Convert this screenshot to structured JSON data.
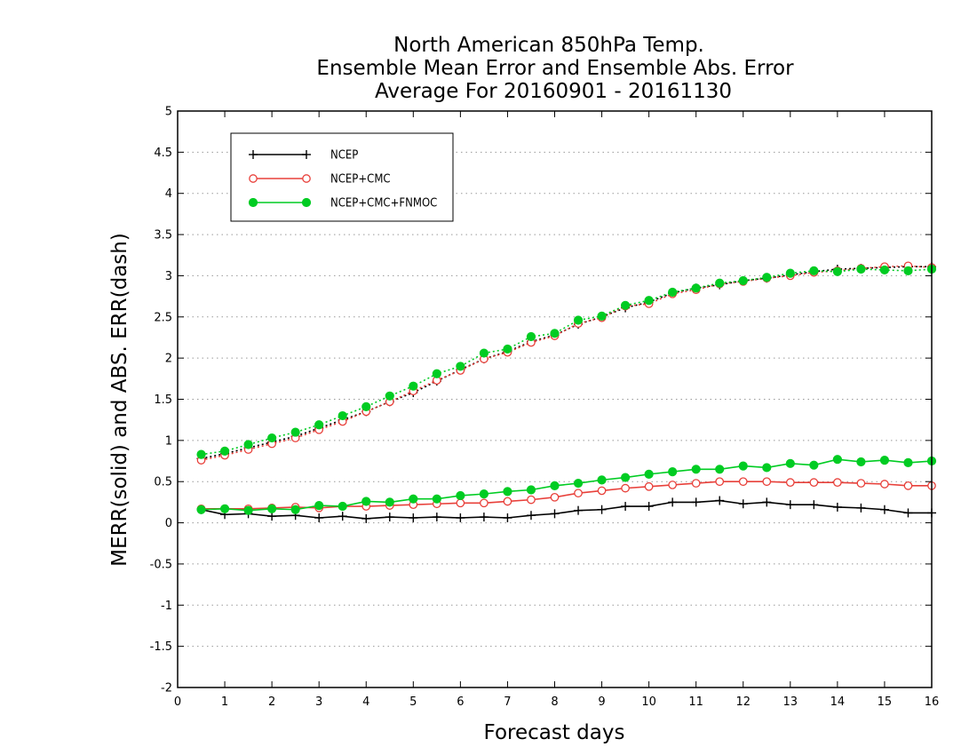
{
  "chart_data": {
    "type": "line",
    "title_lines": [
      "North American 850hPa Temp.",
      "Ensemble Mean Error and Ensemble Abs. Error",
      "Average For 20160901 - 20161130"
    ],
    "xlabel": "Forecast days",
    "ylabel": "MERR(solid) and ABS. ERR(dash)",
    "xlim": [
      0,
      16
    ],
    "ylim": [
      -2,
      5
    ],
    "x_ticks": [
      "0",
      "1",
      "2",
      "3",
      "4",
      "5",
      "6",
      "7",
      "8",
      "9",
      "10",
      "11",
      "12",
      "13",
      "14",
      "15",
      "16"
    ],
    "y_ticks": [
      "-2",
      "-1.5",
      "-1",
      "-0.5",
      "0",
      "0.5",
      "1",
      "1.5",
      "2",
      "2.5",
      "3",
      "3.5",
      "4",
      "4.5",
      "5"
    ],
    "grid": "horizontal dotted",
    "legend_position": "top-left",
    "x": [
      0.5,
      1,
      1.5,
      2,
      2.5,
      3,
      3.5,
      4,
      4.5,
      5,
      5.5,
      6,
      6.5,
      7,
      7.5,
      8,
      8.5,
      9,
      9.5,
      10,
      10.5,
      11,
      11.5,
      12,
      12.5,
      13,
      13.5,
      14,
      14.5,
      15,
      15.5,
      16
    ],
    "series": [
      {
        "name": "NCEP",
        "color": "#000000",
        "marker": "plus",
        "merr": [
          0.16,
          0.1,
          0.11,
          0.08,
          0.09,
          0.06,
          0.08,
          0.05,
          0.07,
          0.06,
          0.07,
          0.06,
          0.07,
          0.06,
          0.09,
          0.11,
          0.15,
          0.16,
          0.2,
          0.2,
          0.25,
          0.25,
          0.27,
          0.23,
          0.25,
          0.22,
          0.22,
          0.19,
          0.18,
          0.16,
          0.12,
          0.12
        ],
        "abs_err": [
          0.78,
          0.84,
          0.91,
          0.98,
          1.05,
          1.15,
          1.25,
          1.35,
          1.47,
          1.58,
          1.72,
          1.86,
          1.99,
          2.08,
          2.2,
          2.28,
          2.41,
          2.5,
          2.61,
          2.68,
          2.79,
          2.85,
          2.89,
          2.94,
          2.97,
          3.01,
          3.05,
          3.08,
          3.09,
          3.1,
          3.11,
          3.11
        ]
      },
      {
        "name": "NCEP+CMC",
        "color": "#e8403a",
        "marker": "open-circle",
        "merr": [
          0.17,
          0.17,
          0.17,
          0.18,
          0.19,
          0.18,
          0.2,
          0.2,
          0.21,
          0.22,
          0.23,
          0.24,
          0.24,
          0.26,
          0.28,
          0.31,
          0.36,
          0.39,
          0.42,
          0.44,
          0.46,
          0.48,
          0.5,
          0.5,
          0.5,
          0.49,
          0.49,
          0.49,
          0.48,
          0.47,
          0.45,
          0.45
        ],
        "abs_err": [
          0.76,
          0.82,
          0.89,
          0.96,
          1.03,
          1.13,
          1.23,
          1.35,
          1.47,
          1.6,
          1.73,
          1.85,
          1.99,
          2.07,
          2.19,
          2.27,
          2.42,
          2.49,
          2.63,
          2.66,
          2.78,
          2.83,
          2.9,
          2.93,
          2.97,
          3.0,
          3.04,
          3.06,
          3.09,
          3.11,
          3.12,
          3.1
        ]
      },
      {
        "name": "NCEP+CMC+FNMOC",
        "color": "#00cc22",
        "marker": "filled-circle",
        "merr": [
          0.16,
          0.17,
          0.15,
          0.17,
          0.16,
          0.21,
          0.2,
          0.26,
          0.25,
          0.29,
          0.29,
          0.33,
          0.35,
          0.38,
          0.4,
          0.45,
          0.48,
          0.52,
          0.55,
          0.59,
          0.62,
          0.65,
          0.65,
          0.69,
          0.67,
          0.72,
          0.7,
          0.77,
          0.74,
          0.76,
          0.73,
          0.75
        ],
        "abs_err": [
          0.83,
          0.87,
          0.95,
          1.03,
          1.1,
          1.19,
          1.3,
          1.41,
          1.54,
          1.66,
          1.81,
          1.9,
          2.06,
          2.11,
          2.26,
          2.3,
          2.46,
          2.51,
          2.64,
          2.7,
          2.8,
          2.85,
          2.91,
          2.94,
          2.98,
          3.03,
          3.06,
          3.05,
          3.08,
          3.07,
          3.06,
          3.08
        ]
      }
    ]
  }
}
